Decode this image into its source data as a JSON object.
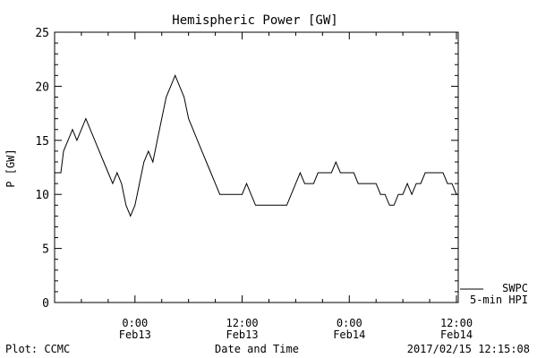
{
  "chart_data": {
    "type": "line",
    "title": "Hemispheric Power [GW]",
    "ylabel": "P [GW]",
    "xlabel": "Date and Time",
    "ylim": [
      0,
      25
    ],
    "y_ticks": [
      0,
      5,
      10,
      15,
      20,
      25
    ],
    "y_tick_labels": [
      "0",
      "5",
      "10",
      "15",
      "20",
      "25"
    ],
    "x_unit": "hours since 0:00 Feb13",
    "xlim": [
      -9,
      36.2
    ],
    "x_ticks": [
      {
        "x": 0,
        "time": "0:00",
        "date": "Feb13"
      },
      {
        "x": 12,
        "time": "12:00",
        "date": "Feb13"
      },
      {
        "x": 24,
        "time": "0:00",
        "date": "Feb14"
      },
      {
        "x": 36,
        "time": "12:00",
        "date": "Feb14"
      }
    ],
    "legend": {
      "line1": "SWPC",
      "line2": "5-min HPI",
      "placement": "right"
    },
    "footer": {
      "left": "Plot: CCMC",
      "right": "2017/02/15 12:15:08"
    },
    "series": [
      {
        "name": "5-min HPI",
        "x": [
          -9,
          -8.3,
          -8,
          -7.5,
          -7,
          -6.5,
          -6,
          -5.5,
          -5,
          -4.5,
          -4,
          -3.5,
          -3,
          -2.5,
          -2,
          -1.5,
          -1,
          -0.5,
          0,
          0.5,
          1,
          1.5,
          2,
          2.5,
          3,
          3.5,
          4,
          4.5,
          5,
          5.5,
          6,
          6.5,
          7,
          7.5,
          8,
          8.5,
          9,
          9.5,
          10,
          10.5,
          11,
          11.5,
          12,
          12.5,
          13,
          13.5,
          14,
          14.5,
          15,
          15.5,
          16,
          16.5,
          17,
          17.5,
          18,
          18.5,
          19,
          19.5,
          20,
          20.5,
          21,
          21.5,
          22,
          22.5,
          23,
          23.5,
          24,
          24.5,
          25,
          25.5,
          26,
          26.5,
          27,
          27.5,
          28,
          28.5,
          29,
          29.5,
          30,
          30.5,
          31,
          31.5,
          32,
          32.5,
          33,
          33.5,
          34,
          34.5,
          35,
          35.5,
          36,
          36.2
        ],
        "y": [
          12,
          12,
          14,
          15,
          16,
          15,
          16,
          17,
          16,
          15,
          14,
          13,
          12,
          11,
          12,
          11,
          9,
          8,
          9,
          11,
          13,
          14,
          13,
          15,
          17,
          19,
          20,
          21,
          20,
          19,
          17,
          16,
          15,
          14,
          13,
          12,
          11,
          10,
          10,
          10,
          10,
          10,
          10,
          11,
          10,
          9,
          9,
          9,
          9,
          9,
          9,
          9,
          9,
          10,
          11,
          12,
          11,
          11,
          11,
          12,
          12,
          12,
          12,
          13,
          12,
          12,
          12,
          12,
          11,
          11,
          11,
          11,
          11,
          10,
          10,
          9,
          9,
          10,
          10,
          11,
          10,
          11,
          11,
          12,
          12,
          12,
          12,
          12,
          11,
          11,
          10,
          10
        ]
      }
    ]
  }
}
